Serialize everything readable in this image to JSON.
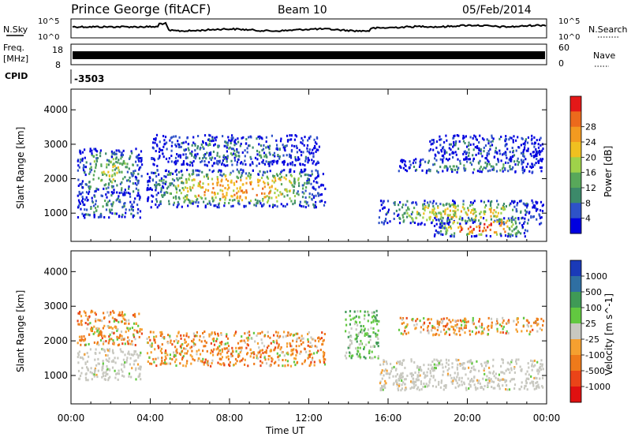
{
  "header": {
    "station": "Prince George (fitACF)",
    "beam": "Beam 10",
    "date": "05/Feb/2014"
  },
  "strip_labels": {
    "nsky": "N.Sky",
    "nsearch": "N.Search",
    "freq_line1": "Freq.",
    "freq_line2": "[MHz]",
    "nave": "Nave",
    "cpid": "CPID",
    "cpid_value": "-3503",
    "noise_tick_hi": "10^5",
    "noise_tick_lo": "10^0",
    "freq_tick_hi": "18",
    "freq_tick_lo": "8",
    "nave_tick_hi": "60",
    "nave_tick_lo": "0"
  },
  "chart_data": [
    {
      "type": "heatmap",
      "name": "power",
      "ylabel": "Slant Range [km]",
      "xlabel": "Time UT",
      "x_ticks": [
        "00:00",
        "04:00",
        "08:00",
        "12:00",
        "16:00",
        "20:00",
        "00:00"
      ],
      "x_range_hours": [
        0,
        24
      ],
      "y_ticks": [
        1000,
        2000,
        3000,
        4000
      ],
      "y_range_km": [
        180,
        4600
      ],
      "colorbar": {
        "label": "Power [dB]",
        "ticks": [
          "4",
          "8",
          "12",
          "16",
          "20",
          "24",
          "28"
        ],
        "colors": [
          "#0000e0",
          "#2e52c8",
          "#3c8a6a",
          "#58a85a",
          "#9fd24a",
          "#f0c020",
          "#f39a20",
          "#ec6a1c",
          "#e41818"
        ]
      },
      "regions": [
        {
          "t0": 0.3,
          "t1": 3.6,
          "r0": 1600,
          "r1": 2900,
          "level": 0.45
        },
        {
          "t0": 0.3,
          "t1": 3.5,
          "r0": 900,
          "r1": 1600,
          "level": 0.3
        },
        {
          "t0": 3.8,
          "t1": 12.8,
          "r0": 1200,
          "r1": 2300,
          "level": 0.7
        },
        {
          "t0": 4.0,
          "t1": 12.5,
          "r0": 2400,
          "r1": 3300,
          "level": 0.2
        },
        {
          "t0": 15.5,
          "t1": 23.8,
          "r0": 700,
          "r1": 1400,
          "level": 0.55
        },
        {
          "t0": 18.3,
          "t1": 23.0,
          "r0": 350,
          "r1": 900,
          "level": 0.85
        },
        {
          "t0": 16.5,
          "t1": 23.8,
          "r0": 2200,
          "r1": 2600,
          "level": 0.3
        },
        {
          "t0": 18.0,
          "t1": 23.8,
          "r0": 2600,
          "r1": 3300,
          "level": 0.15
        }
      ]
    },
    {
      "type": "heatmap",
      "name": "velocity",
      "ylabel": "Slant Range [km]",
      "xlabel": "Time UT",
      "x_ticks": [
        "00:00",
        "04:00",
        "08:00",
        "12:00",
        "16:00",
        "20:00",
        "00:00"
      ],
      "x_range_hours": [
        0,
        24
      ],
      "y_ticks": [
        1000,
        2000,
        3000,
        4000
      ],
      "y_range_km": [
        180,
        4600
      ],
      "colorbar": {
        "label": "Velocity [m s^-1]",
        "ticks": [
          "1000",
          "500",
          "100",
          "25",
          "-25",
          "-100",
          "-500",
          "-1000"
        ],
        "colors": [
          "#1a3ab8",
          "#2f6fa2",
          "#3f9a56",
          "#62c840",
          "#c8c8c0",
          "#f5a030",
          "#ef7a1a",
          "#ea4418",
          "#e01010"
        ]
      },
      "regions": [
        {
          "t0": 0.3,
          "t1": 3.6,
          "r0": 1900,
          "r1": 2900,
          "kind": "neg"
        },
        {
          "t0": 0.3,
          "t1": 3.5,
          "r0": 900,
          "r1": 1800,
          "kind": "gray"
        },
        {
          "t0": 3.8,
          "t1": 12.8,
          "r0": 1300,
          "r1": 2300,
          "kind": "neg"
        },
        {
          "t0": 15.5,
          "t1": 23.8,
          "r0": 600,
          "r1": 1500,
          "kind": "gray"
        },
        {
          "t0": 16.5,
          "t1": 23.8,
          "r0": 2200,
          "r1": 2700,
          "kind": "neg"
        },
        {
          "t0": 13.8,
          "t1": 15.5,
          "r0": 1500,
          "r1": 2900,
          "kind": "pos"
        }
      ]
    }
  ]
}
